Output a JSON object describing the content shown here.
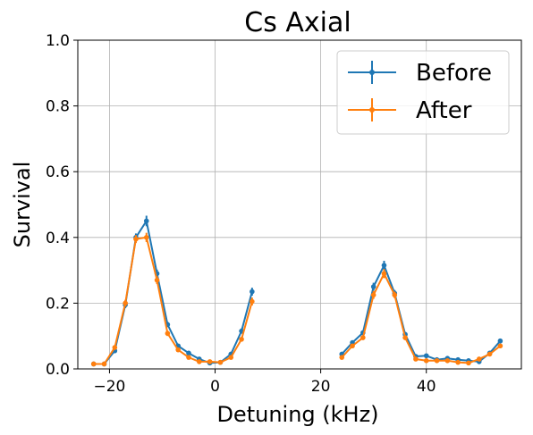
{
  "chart_data": {
    "type": "line",
    "title": "Cs Axial",
    "xlabel": "Detuning (kHz)",
    "ylabel": "Survival",
    "xlim": [
      -26,
      58
    ],
    "ylim": [
      0,
      1.0
    ],
    "xticks": [
      -20,
      0,
      20,
      40
    ],
    "xtick_labels": [
      "−20",
      "0",
      "20",
      "40"
    ],
    "yticks": [
      0,
      0.2,
      0.4,
      0.6,
      0.8,
      1.0
    ],
    "ytick_labels": [
      "0.0",
      "0.2",
      "0.4",
      "0.6",
      "0.8",
      "1.0"
    ],
    "grid": true,
    "legend_position": "top-right",
    "series": [
      {
        "name": "Before",
        "color": "#1f77b4",
        "segments": [
          [
            {
              "x": -23,
              "y": 0.015,
              "err": 0.004
            },
            {
              "x": -21,
              "y": 0.015,
              "err": 0.004
            },
            {
              "x": -19,
              "y": 0.055,
              "err": 0.006
            },
            {
              "x": -17,
              "y": 0.195,
              "err": 0.01
            },
            {
              "x": -15,
              "y": 0.4,
              "err": 0.012
            },
            {
              "x": -13,
              "y": 0.45,
              "err": 0.016
            },
            {
              "x": -11,
              "y": 0.29,
              "err": 0.012
            },
            {
              "x": -9,
              "y": 0.135,
              "err": 0.008
            },
            {
              "x": -7,
              "y": 0.07,
              "err": 0.006
            },
            {
              "x": -5,
              "y": 0.048,
              "err": 0.005
            },
            {
              "x": -3,
              "y": 0.03,
              "err": 0.004
            },
            {
              "x": -1,
              "y": 0.018,
              "err": 0.004
            },
            {
              "x": 1,
              "y": 0.02,
              "err": 0.004
            },
            {
              "x": 3,
              "y": 0.045,
              "err": 0.005
            },
            {
              "x": 5,
              "y": 0.115,
              "err": 0.008
            },
            {
              "x": 7,
              "y": 0.235,
              "err": 0.012
            }
          ],
          [
            {
              "x": 24,
              "y": 0.045,
              "err": 0.005
            },
            {
              "x": 26,
              "y": 0.08,
              "err": 0.006
            },
            {
              "x": 28,
              "y": 0.11,
              "err": 0.007
            },
            {
              "x": 30,
              "y": 0.25,
              "err": 0.012
            },
            {
              "x": 32,
              "y": 0.315,
              "err": 0.014
            },
            {
              "x": 34,
              "y": 0.23,
              "err": 0.01
            },
            {
              "x": 36,
              "y": 0.105,
              "err": 0.007
            },
            {
              "x": 38,
              "y": 0.038,
              "err": 0.005
            },
            {
              "x": 40,
              "y": 0.04,
              "err": 0.005
            },
            {
              "x": 42,
              "y": 0.028,
              "err": 0.004
            },
            {
              "x": 44,
              "y": 0.032,
              "err": 0.004
            },
            {
              "x": 46,
              "y": 0.028,
              "err": 0.004
            },
            {
              "x": 48,
              "y": 0.025,
              "err": 0.004
            },
            {
              "x": 50,
              "y": 0.022,
              "err": 0.004
            },
            {
              "x": 52,
              "y": 0.048,
              "err": 0.005
            },
            {
              "x": 54,
              "y": 0.085,
              "err": 0.007
            }
          ]
        ]
      },
      {
        "name": "After",
        "color": "#ff7f0e",
        "segments": [
          [
            {
              "x": -23,
              "y": 0.015,
              "err": 0.004
            },
            {
              "x": -21,
              "y": 0.015,
              "err": 0.004
            },
            {
              "x": -19,
              "y": 0.065,
              "err": 0.006
            },
            {
              "x": -17,
              "y": 0.2,
              "err": 0.01
            },
            {
              "x": -15,
              "y": 0.395,
              "err": 0.012
            },
            {
              "x": -13,
              "y": 0.4,
              "err": 0.014
            },
            {
              "x": -11,
              "y": 0.27,
              "err": 0.012
            },
            {
              "x": -9,
              "y": 0.108,
              "err": 0.008
            },
            {
              "x": -7,
              "y": 0.058,
              "err": 0.006
            },
            {
              "x": -5,
              "y": 0.035,
              "err": 0.005
            },
            {
              "x": -3,
              "y": 0.022,
              "err": 0.004
            },
            {
              "x": -1,
              "y": 0.022,
              "err": 0.004
            },
            {
              "x": 1,
              "y": 0.02,
              "err": 0.004
            },
            {
              "x": 3,
              "y": 0.035,
              "err": 0.005
            },
            {
              "x": 5,
              "y": 0.09,
              "err": 0.007
            },
            {
              "x": 7,
              "y": 0.205,
              "err": 0.012
            }
          ],
          [
            {
              "x": 24,
              "y": 0.035,
              "err": 0.005
            },
            {
              "x": 26,
              "y": 0.07,
              "err": 0.006
            },
            {
              "x": 28,
              "y": 0.095,
              "err": 0.007
            },
            {
              "x": 30,
              "y": 0.225,
              "err": 0.012
            },
            {
              "x": 32,
              "y": 0.29,
              "err": 0.014
            },
            {
              "x": 34,
              "y": 0.225,
              "err": 0.01
            },
            {
              "x": 36,
              "y": 0.095,
              "err": 0.007
            },
            {
              "x": 38,
              "y": 0.03,
              "err": 0.005
            },
            {
              "x": 40,
              "y": 0.025,
              "err": 0.004
            },
            {
              "x": 42,
              "y": 0.025,
              "err": 0.004
            },
            {
              "x": 44,
              "y": 0.025,
              "err": 0.004
            },
            {
              "x": 46,
              "y": 0.02,
              "err": 0.004
            },
            {
              "x": 48,
              "y": 0.018,
              "err": 0.004
            },
            {
              "x": 50,
              "y": 0.03,
              "err": 0.004
            },
            {
              "x": 52,
              "y": 0.045,
              "err": 0.005
            },
            {
              "x": 54,
              "y": 0.07,
              "err": 0.006
            }
          ]
        ]
      }
    ]
  }
}
